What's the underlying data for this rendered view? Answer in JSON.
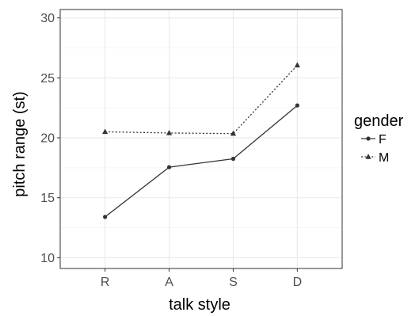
{
  "chart_data": {
    "type": "line",
    "categories": [
      "R",
      "A",
      "S",
      "D"
    ],
    "series": [
      {
        "name": "F",
        "values": [
          13.4,
          17.55,
          18.25,
          22.7
        ],
        "line_style": "solid",
        "marker": "circle",
        "color": "#333333"
      },
      {
        "name": "M",
        "values": [
          20.5,
          20.4,
          20.35,
          26.05
        ],
        "line_style": "dotted",
        "marker": "triangle",
        "color": "#333333"
      }
    ],
    "title": "",
    "xlabel": "talk style",
    "ylabel": "pitch range (st)",
    "ylim": [
      9.1,
      30.7
    ],
    "yticks": [
      10,
      15,
      20,
      25,
      30
    ],
    "ytick_labels": [
      "10",
      "15",
      "20",
      "25",
      "30"
    ],
    "grid": true,
    "legend": {
      "title": "gender",
      "placement": "right"
    },
    "colors": {
      "panel_border": "#333333",
      "grid_major": "#ebebeb",
      "grid_minor": "#f5f5f5",
      "tick_text": "#4d4d4d"
    }
  }
}
